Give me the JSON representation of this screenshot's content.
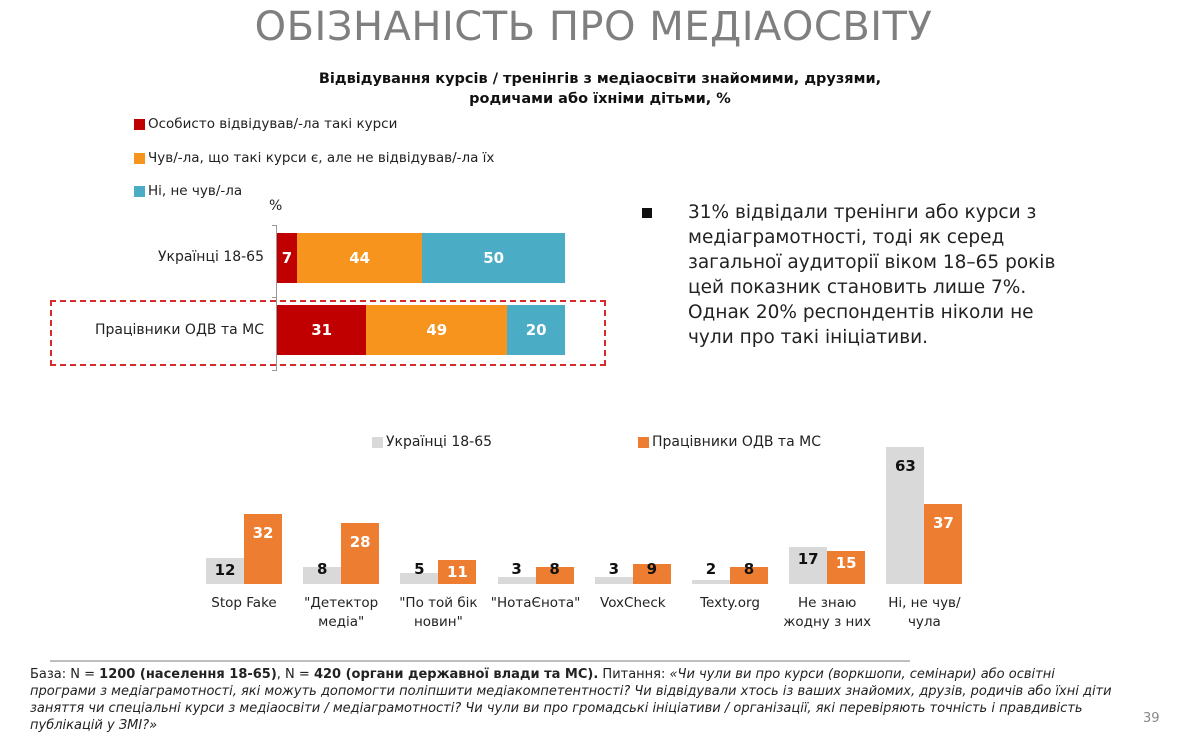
{
  "slide": {
    "title": "ОБІЗНАНІСТЬ ПРО МЕДІАОСВІТУ",
    "page_number": "39"
  },
  "note": {
    "text": "31% відвідали тренінги або курси з медіаграмотності, тоді як серед загальної аудиторії віком 18–65 років цей показник становить лише 7%. Однак 20% респондентів ніколи не чули про такі ініціативи."
  },
  "footer": {
    "base_label": "База: N = ",
    "base_bold1": "1200 (населення 18-65)",
    "base_mid": ", N = ",
    "base_bold2": "420 (органи державної влади та МС).",
    "question_label": " Питання: ",
    "question_text": "«Чи чули ви про курси (воркшопи, семінари) або освітні програми з медіаграмотності, які можуть допомогти поліпшити медіакомпетентності? Чи відвідували хтось із ваших знайомих, друзів, родичів або їхні діти заняття чи спеціальні курси з медіаосвіти / медіаграмотності? Чи чули ви про громадські ініціативи / організації, які перевіряють точність і правдивість публікацій у ЗМІ?»"
  },
  "chart_data": [
    {
      "type": "bar",
      "orientation": "horizontal",
      "stacked": true,
      "title": "Відвідування курсів / тренінгів з медіаосвіти знайомими, друзями, родичами або їхніми дітьми, %",
      "unit_label": "%",
      "categories": [
        "Українці 18-65",
        "Працівники ОДВ та МС"
      ],
      "highlighted_category": "Працівники ОДВ та МС",
      "series": [
        {
          "name": "Особисто відвідував/-ла такі курси",
          "color": "#c00000",
          "values": [
            7,
            31
          ]
        },
        {
          "name": "Чув/-ла, що такі курси є, але не відвідував/-ла їх",
          "color": "#f7941d",
          "values": [
            44,
            49
          ]
        },
        {
          "name": "Ні, не чув/-ла",
          "color": "#4bacc6",
          "values": [
            50,
            20
          ]
        }
      ],
      "legend": "top-left"
    },
    {
      "type": "bar",
      "orientation": "vertical",
      "stacked": false,
      "categories": [
        "Stop Fake",
        "\"Детектор медіа\"",
        "\"По той бік новин\"",
        "\"НотаЄнота\"",
        "VoxCheck",
        "Texty.org",
        "Не знаю жодну з них",
        "Ні, не чув/чула"
      ],
      "series": [
        {
          "name": "Українці 18-65",
          "color": "#d9d9d9",
          "label_color": "#111111",
          "values": [
            12,
            8,
            5,
            3,
            3,
            2,
            17,
            63
          ]
        },
        {
          "name": "Працівники ОДВ та МС",
          "color": "#ed7d31",
          "label_color": "#ffffff",
          "values": [
            32,
            28,
            11,
            8,
            9,
            8,
            15,
            37
          ]
        }
      ],
      "legend": "top",
      "ylim": [
        0,
        63
      ]
    }
  ]
}
